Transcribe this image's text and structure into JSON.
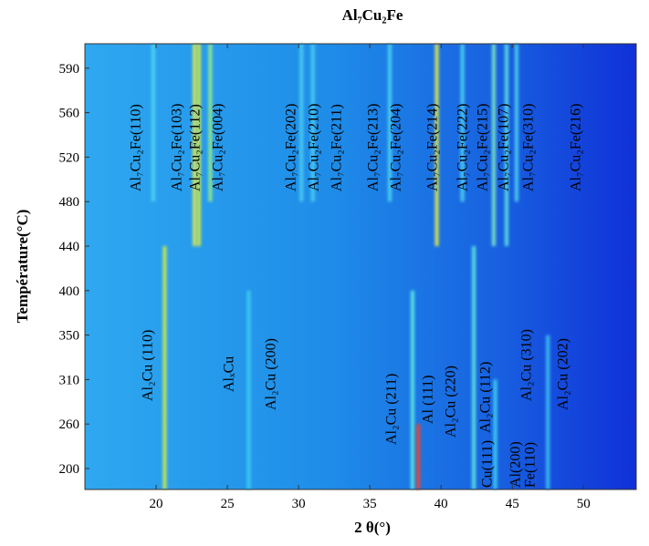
{
  "chart_data": {
    "type": "heatmap-peaks",
    "title": "Al₇Cu₂Fe",
    "x_label": "2 θ(°)",
    "y_label": "Température(°C)",
    "xlim": [
      15,
      53.7
    ],
    "xticks": [
      20,
      25,
      30,
      35,
      40,
      45,
      50
    ],
    "y_categories": [
      200,
      260,
      310,
      350,
      400,
      440,
      480,
      520,
      560,
      590
    ],
    "peaks": [
      {
        "two_theta": 20.6,
        "t_from": 200,
        "t_to": 440,
        "color": "#d8f040"
      },
      {
        "two_theta": 26.5,
        "t_from": 200,
        "t_to": 400,
        "color": "#40d0f0"
      },
      {
        "two_theta": 38.0,
        "t_from": 200,
        "t_to": 400,
        "color": "#60f0e0"
      },
      {
        "two_theta": 38.4,
        "t_from": 200,
        "t_to": 260,
        "color": "#ff4020"
      },
      {
        "two_theta": 42.3,
        "t_from": 200,
        "t_to": 440,
        "color": "#60f0e0"
      },
      {
        "two_theta": 43.8,
        "t_from": 200,
        "t_to": 310,
        "color": "#40d8f0"
      },
      {
        "two_theta": 47.5,
        "t_from": 200,
        "t_to": 350,
        "color": "#40c8f0"
      },
      {
        "two_theta": 19.8,
        "t_from": 480,
        "t_to": 590,
        "color": "#50d8f0"
      },
      {
        "two_theta": 22.7,
        "t_from": 440,
        "t_to": 590,
        "color": "#f0f040"
      },
      {
        "two_theta": 23.0,
        "t_from": 440,
        "t_to": 590,
        "color": "#e0f040"
      },
      {
        "two_theta": 23.8,
        "t_from": 480,
        "t_to": 590,
        "color": "#a0f080"
      },
      {
        "two_theta": 30.2,
        "t_from": 480,
        "t_to": 590,
        "color": "#50d0f0"
      },
      {
        "two_theta": 31.0,
        "t_from": 480,
        "t_to": 590,
        "color": "#50d0f0"
      },
      {
        "two_theta": 36.4,
        "t_from": 480,
        "t_to": 590,
        "color": "#50d8f0"
      },
      {
        "two_theta": 39.7,
        "t_from": 440,
        "t_to": 590,
        "color": "#f0f040"
      },
      {
        "two_theta": 41.5,
        "t_from": 480,
        "t_to": 590,
        "color": "#50d8f0"
      },
      {
        "two_theta": 43.7,
        "t_from": 440,
        "t_to": 590,
        "color": "#80f0c0"
      },
      {
        "two_theta": 44.6,
        "t_from": 440,
        "t_to": 590,
        "color": "#60e8e0"
      },
      {
        "two_theta": 45.3,
        "t_from": 480,
        "t_to": 590,
        "color": "#50d8f0"
      }
    ],
    "annotations": [
      "Al₇Cu₂Fe(110)",
      "Al₇Cu₂Fe(103)",
      "Al₇Cu₂Fe(112)",
      "Al₇Cu₂Fe(004)",
      "Al₇Cu₂Fe(202)",
      "Al₇Cu₂Fe(210)",
      "Al₇Cu₂Fe(211)",
      "Al₇Cu₂Fe(213)",
      "Al₇Cu₂Fe(204)",
      "Al₇Cu₂Fe(214)",
      "Al₇Cu₂Fe(222)",
      "Al₇Cu₂Fe(215)",
      "Al₇Cu₂Fe(107)",
      "Al₇Cu₂Fe(310)",
      "Al₇Cu₂Fe(216)",
      "Al₂Cu (110)",
      "AlₓCu",
      "Al₂Cu (200)",
      "Al₂Cu (211)",
      "Al (111)",
      "Al₂Cu (220)",
      "Al₂Cu (112)",
      "Cu(111)",
      "Al(200)",
      "Fe(110)",
      "Al₂Cu (310)",
      "Al₂Cu (202)"
    ]
  }
}
